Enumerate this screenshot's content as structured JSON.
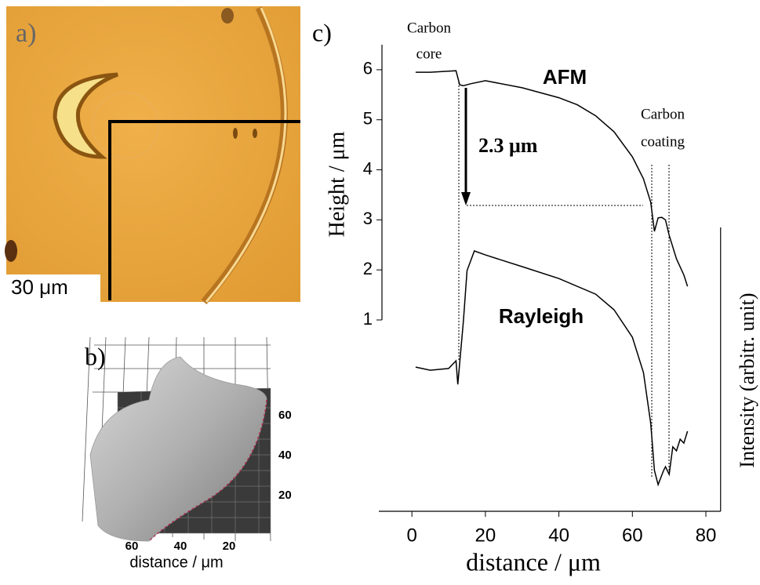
{
  "panel_a": {
    "label": "a)",
    "scale_bar": "30 μm"
  },
  "panel_b": {
    "label": "b)",
    "side_ticks": [
      60,
      40,
      20
    ],
    "bottom_ticks": [
      60,
      40,
      20
    ],
    "xlabel": "distance / μm"
  },
  "chart_data": {
    "type": "line",
    "label": "c)",
    "xlabel": "distance / μm",
    "ylabel": "Height / μm",
    "y2label": "Intensity (arbitr. unit)",
    "xlim": [
      -9,
      84
    ],
    "xticks": [
      0,
      20,
      40,
      60,
      80
    ],
    "ylim": [
      1,
      6.5
    ],
    "yticks": [
      1,
      2,
      3,
      4,
      5,
      6
    ],
    "y2lim": [
      0,
      1
    ],
    "annotations": {
      "core": [
        "Carbon",
        "core"
      ],
      "coating": [
        "Carbon",
        "coating"
      ],
      "drop": "2.3 μm"
    },
    "series": [
      {
        "name": "AFM",
        "color": "#000000",
        "x": [
          1,
          5,
          10,
          12,
          13,
          14,
          16,
          20,
          30,
          40,
          45,
          50,
          55,
          60,
          63,
          65,
          66,
          67,
          68,
          69,
          70,
          72,
          74,
          75
        ],
        "values": [
          5.95,
          5.95,
          5.97,
          5.98,
          5.7,
          5.68,
          5.72,
          5.78,
          5.64,
          5.44,
          5.3,
          5.08,
          4.76,
          4.26,
          3.82,
          3.35,
          2.77,
          3.04,
          3.05,
          3.0,
          2.69,
          2.22,
          1.9,
          1.67
        ]
      },
      {
        "name": "Rayleigh",
        "color": "#000000",
        "axis": "y2",
        "x": [
          1,
          5,
          10,
          12,
          12.5,
          14,
          15,
          17,
          20,
          30,
          40,
          50,
          55,
          60,
          63,
          65,
          66,
          67,
          68.5,
          69,
          70,
          71,
          72,
          73,
          74,
          75
        ],
        "values": [
          0.508,
          0.497,
          0.503,
          0.53,
          0.447,
          0.669,
          0.848,
          0.917,
          0.903,
          0.862,
          0.82,
          0.765,
          0.71,
          0.613,
          0.489,
          0.309,
          0.144,
          0.094,
          0.144,
          0.157,
          0.13,
          0.227,
          0.213,
          0.254,
          0.24,
          0.282
        ]
      }
    ]
  }
}
